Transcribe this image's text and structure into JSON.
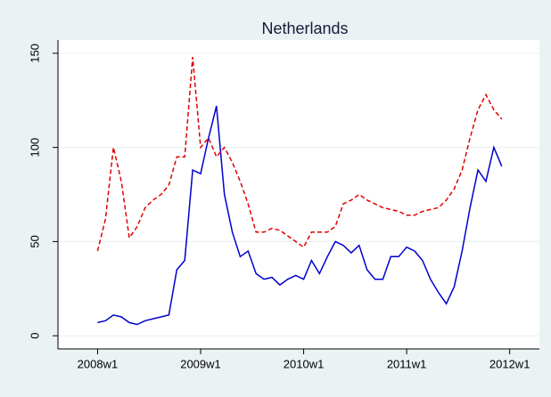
{
  "chart_data": {
    "type": "line",
    "title": "Netherlands",
    "x": [
      "2008w1",
      "2008w5",
      "2008w9",
      "2008w13",
      "2008w17",
      "2008w21",
      "2008w25",
      "2008w29",
      "2008w33",
      "2008w37",
      "2008w41",
      "2008w45",
      "2008w49",
      "2009w1",
      "2009w5",
      "2009w9",
      "2009w13",
      "2009w17",
      "2009w21",
      "2009w25",
      "2009w29",
      "2009w33",
      "2009w37",
      "2009w41",
      "2009w45",
      "2009w49",
      "2010w1",
      "2010w5",
      "2010w9",
      "2010w13",
      "2010w17",
      "2010w21",
      "2010w25",
      "2010w29",
      "2010w33",
      "2010w37",
      "2010w41",
      "2010w45",
      "2010w49",
      "2011w1",
      "2011w5",
      "2011w9",
      "2011w13",
      "2011w17",
      "2011w21",
      "2011w25",
      "2011w29",
      "2011w33",
      "2011w37",
      "2011w41",
      "2011w45",
      "2011w49"
    ],
    "series": [
      {
        "color": "#0000cc",
        "dash": false,
        "values": [
          7,
          8,
          11,
          10,
          7,
          6,
          8,
          9,
          10,
          11,
          35,
          40,
          88,
          86,
          105,
          122,
          75,
          55,
          42,
          45,
          33,
          30,
          31,
          27,
          30,
          32,
          30,
          40,
          33,
          42,
          50,
          48,
          44,
          48,
          35,
          30,
          30,
          42,
          42,
          47,
          45,
          40,
          30,
          23,
          17,
          26,
          45,
          68,
          88,
          82,
          100,
          90
        ]
      },
      {
        "color": "#e00000",
        "dash": true,
        "values": [
          45,
          62,
          100,
          82,
          52,
          58,
          68,
          72,
          75,
          80,
          95,
          95,
          148,
          100,
          105,
          95,
          100,
          92,
          82,
          70,
          55,
          55,
          57,
          56,
          53,
          50,
          47,
          55,
          55,
          55,
          58,
          70,
          72,
          75,
          72,
          70,
          68,
          67,
          66,
          64,
          64,
          66,
          67,
          68,
          72,
          78,
          88,
          105,
          120,
          128,
          120,
          115
        ]
      }
    ],
    "xlim": [
      "2007w33",
      "2012w16"
    ],
    "xticks": [
      "2008w1",
      "2009w1",
      "2010w1",
      "2011w1",
      "2012w1"
    ],
    "ylim": [
      -7,
      157
    ],
    "yticks": [
      0,
      50,
      100,
      150
    ],
    "grid": true
  }
}
